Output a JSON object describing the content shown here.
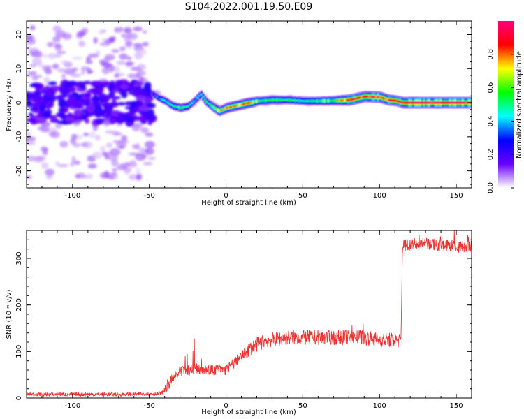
{
  "title": "S104.2022.001.19.50.E09",
  "chart_data": [
    {
      "type": "heatmap",
      "xlabel": "Height of straight line (km)",
      "ylabel": "Frequency (Hz)",
      "xlim": [
        -130,
        160
      ],
      "ylim": [
        -25,
        24
      ],
      "xticks": [
        -100,
        -50,
        0,
        50,
        100,
        150
      ],
      "xtick_labels": [
        "-100",
        "-50",
        "0",
        "50",
        "100",
        "150"
      ],
      "yticks": [
        -20,
        -10,
        0,
        10,
        20
      ],
      "ytick_labels": [
        "-20",
        "-10",
        "0",
        "10",
        "20"
      ],
      "colorbar": {
        "label": "Normalized spectral amplitude",
        "range": [
          0,
          1
        ],
        "ticks": [
          0,
          0.2,
          0.4,
          0.6,
          0.8
        ],
        "tick_labels": [
          "0.0",
          "0.2",
          "0.4",
          "0.6",
          "0.8"
        ],
        "colormap": [
          "#ffffff",
          "#6a00ff",
          "#0000ff",
          "#00ffff",
          "#00ff00",
          "#ffff00",
          "#ff0000",
          "#ff0080"
        ]
      },
      "noise_region": {
        "x_range": [
          -130,
          -48
        ],
        "freq_range": [
          -25,
          24
        ]
      },
      "ridge": {
        "x": [
          -48,
          -45,
          -40,
          -35,
          -30,
          -25,
          -20,
          -17,
          -14,
          -10,
          -5,
          0,
          5,
          10,
          15,
          20,
          30,
          40,
          50,
          60,
          70,
          80,
          90,
          100,
          105,
          110,
          115,
          130,
          160
        ],
        "freq": [
          2.5,
          1.5,
          0.5,
          -1,
          -1.5,
          -1,
          1,
          2.5,
          0.5,
          -1,
          -2.5,
          -1.5,
          -1,
          -0.5,
          0,
          0.5,
          0.8,
          0.8,
          0.5,
          0.5,
          0.6,
          0.8,
          1.8,
          1.6,
          0.8,
          0.6,
          0,
          0,
          0
        ],
        "amplitude": [
          0.3,
          0.35,
          0.45,
          0.5,
          0.55,
          0.5,
          0.4,
          0.5,
          0.55,
          0.6,
          0.7,
          0.75,
          0.75,
          0.8,
          0.75,
          0.6,
          0.55,
          0.5,
          0.5,
          0.55,
          0.65,
          0.9,
          0.9,
          0.9,
          0.85,
          0.8,
          0.95,
          0.95,
          0.95
        ]
      }
    },
    {
      "type": "line",
      "xlabel": "Height of straight line (km)",
      "ylabel": "SNR (10 * v/v)",
      "xlim": [
        -130,
        160
      ],
      "ylim": [
        0,
        360
      ],
      "xticks": [
        -100,
        -50,
        0,
        50,
        100,
        150
      ],
      "xtick_labels": [
        "-100",
        "-50",
        "0",
        "50",
        "100",
        "150"
      ],
      "yticks": [
        0,
        100,
        200,
        300
      ],
      "ytick_labels": [
        "0",
        "100",
        "200",
        "300"
      ],
      "series_color": "#ee3333",
      "series": [
        {
          "x": [
            -130,
            -110,
            -90,
            -70,
            -50,
            -42,
            -40,
            -35,
            -30,
            -25,
            -20,
            -15,
            -10,
            -5,
            0,
            5,
            10,
            15,
            20,
            25,
            30,
            40,
            50,
            60,
            70,
            80,
            90,
            100,
            110,
            114,
            115,
            120,
            130,
            140,
            150,
            160
          ],
          "y": [
            8,
            8,
            8,
            8,
            9,
            10,
            20,
            40,
            55,
            60,
            62,
            65,
            60,
            62,
            60,
            75,
            90,
            105,
            115,
            122,
            125,
            130,
            130,
            130,
            130,
            130,
            130,
            125,
            125,
            122,
            330,
            330,
            330,
            328,
            325,
            325
          ]
        }
      ]
    }
  ]
}
